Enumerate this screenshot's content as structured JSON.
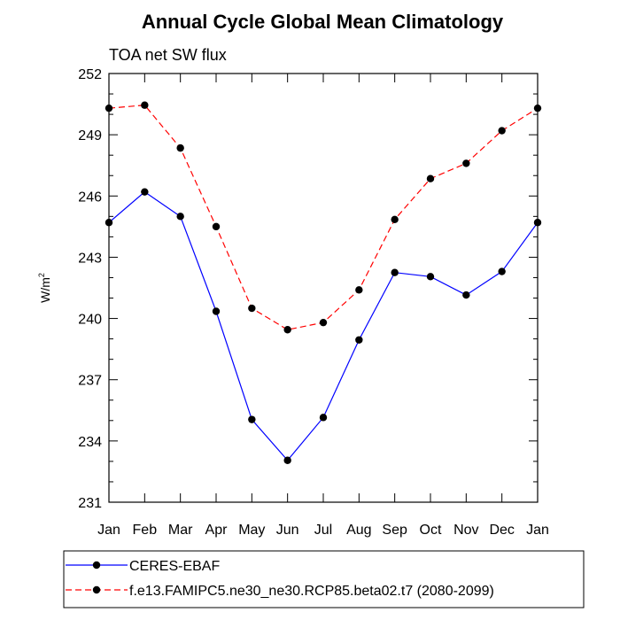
{
  "chart_data": {
    "type": "line",
    "title": "Annual Cycle Global Mean Climatology",
    "subtitle": "TOA net SW flux",
    "ylabel": "W/m",
    "ylabel_sup": "2",
    "xlabel": "",
    "ylim": [
      231,
      252
    ],
    "yticks": [
      "231",
      "234",
      "237",
      "240",
      "243",
      "246",
      "249",
      "252"
    ],
    "categories": [
      "Jan",
      "Feb",
      "Mar",
      "Apr",
      "May",
      "Jun",
      "Jul",
      "Aug",
      "Sep",
      "Oct",
      "Nov",
      "Dec",
      "Jan"
    ],
    "series": [
      {
        "name": "CERES-EBAF",
        "color": "#0000ff",
        "dash": "solid",
        "values": [
          244.7,
          246.2,
          245.0,
          240.35,
          235.05,
          233.05,
          235.15,
          238.95,
          242.25,
          242.05,
          241.15,
          242.3,
          244.7
        ]
      },
      {
        "name": "f.e13.FAMIPC5.ne30_ne30.RCP85.beta02.t7 (2080-2099)",
        "color": "#ff0000",
        "dash": "dashed",
        "values": [
          250.3,
          250.45,
          248.35,
          244.5,
          240.5,
          239.45,
          239.8,
          241.4,
          244.85,
          246.85,
          247.6,
          249.2,
          250.3
        ]
      }
    ]
  }
}
